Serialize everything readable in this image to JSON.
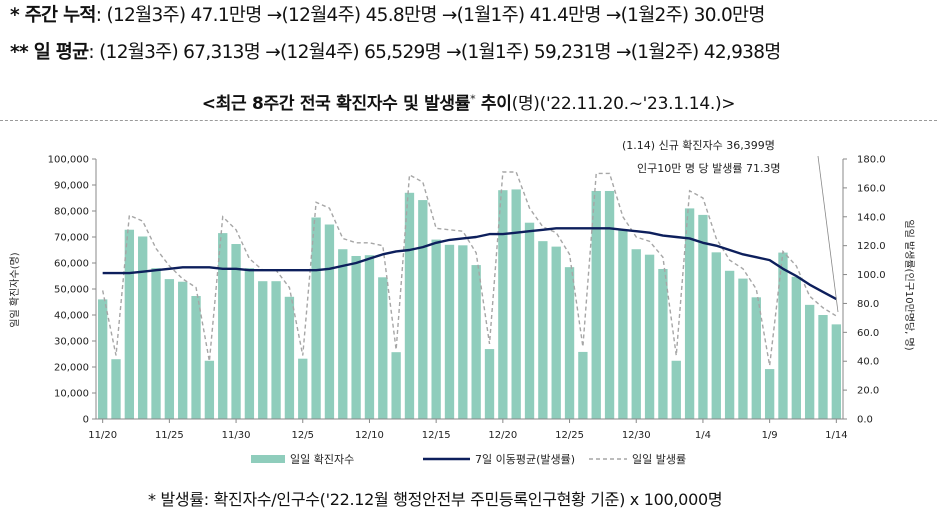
{
  "summary": {
    "weekly_label": "* 주간 누적",
    "weekly_text": ": (12월3주) 47.1만명 →(12월4주) 45.8만명 →(1월1주) 41.4만명 →(1월2주) 30.0만명",
    "daily_label": "** 일 평균",
    "daily_text": ": (12월3주) 67,313명 →(12월4주) 65,529명 →(1월1주) 59,231명 →(1월2주) 42,938명"
  },
  "header": {
    "title_main": "<최근 8주간 전국 확진자수 및 발생률",
    "title_star": "*",
    "title_end": " 추이",
    "title_unit": "(명)",
    "title_period": "('22.11.20.~'23.1.14.)>"
  },
  "footnote": "* 발생률: 확진자수/인구수('22.12월 행정안전부 주민등록인구현황 기준) x 100,000명",
  "chart_data": {
    "type": "bar",
    "title": "<최근 8주간 전국 확진자수 및 발생률* 추이(명)('22.11.20.~'23.1.14.)>",
    "ylabel": "일일 확진자수(명)",
    "y2label": "일일 발생률(인구10만명당, 명)",
    "ylim": [
      0,
      100000
    ],
    "y2lim": [
      0,
      180
    ],
    "yticks": [
      "0",
      "10,000",
      "20,000",
      "30,000",
      "40,000",
      "50,000",
      "60,000",
      "70,000",
      "80,000",
      "90,000",
      "100,000"
    ],
    "y2ticks": [
      "0.0",
      "20.0",
      "40.0",
      "60.0",
      "80.0",
      "100.0",
      "120.0",
      "140.0",
      "160.0",
      "180.0"
    ],
    "xtick_labels": [
      {
        "i": 0,
        "label": "11/20"
      },
      {
        "i": 5,
        "label": "11/25"
      },
      {
        "i": 10,
        "label": "11/30"
      },
      {
        "i": 15,
        "label": "12/5"
      },
      {
        "i": 20,
        "label": "12/10"
      },
      {
        "i": 25,
        "label": "12/15"
      },
      {
        "i": 30,
        "label": "12/20"
      },
      {
        "i": 35,
        "label": "12/25"
      },
      {
        "i": 40,
        "label": "12/30"
      },
      {
        "i": 45,
        "label": "1/4"
      },
      {
        "i": 50,
        "label": "1/9"
      },
      {
        "i": 55,
        "label": "1/14"
      }
    ],
    "grid": false,
    "legend_position": "bottom",
    "series": [
      {
        "name": "일일 확진자수",
        "type": "bar",
        "axis": "left",
        "color": "#8fcdbc",
        "values": [
          46000,
          23000,
          72800,
          70200,
          58000,
          53800,
          52800,
          47300,
          22400,
          71500,
          67300,
          58000,
          53000,
          53000,
          47000,
          23200,
          77500,
          74800,
          65300,
          62700,
          63000,
          54500,
          25700,
          87000,
          84200,
          69000,
          67000,
          66800,
          59200,
          26900,
          88000,
          88300,
          75500,
          68400,
          66300,
          58400,
          25800,
          87700,
          87700,
          72800,
          65300,
          63200,
          57700,
          22400,
          81000,
          78500,
          64100,
          57000,
          54000,
          46800,
          19200,
          64000,
          54700,
          43900,
          40000,
          36399
        ]
      },
      {
        "name": "7일 이동평균(발생률)",
        "type": "line",
        "axis": "right",
        "color": "#0d1f5c",
        "values": [
          101,
          101,
          101,
          102,
          103,
          104,
          105,
          105,
          105,
          104,
          104,
          103,
          103,
          103,
          103,
          103,
          103,
          104,
          106,
          108,
          111,
          114,
          116,
          117,
          119,
          122,
          124,
          125,
          126,
          128,
          128,
          129,
          130,
          131,
          132,
          132,
          132,
          132,
          132,
          131,
          130,
          129,
          127,
          126,
          125,
          122,
          120,
          117,
          114,
          112,
          110,
          104,
          99,
          93,
          88,
          83
        ]
      },
      {
        "name": "일일 발생률",
        "type": "line",
        "axis": "right",
        "color": "#a6a6a6",
        "dashed": true,
        "values": [
          89,
          44,
          141,
          137,
          118,
          106,
          97,
          91,
          40,
          140,
          131,
          111,
          103,
          103,
          91,
          44,
          150,
          146,
          125,
          122,
          122,
          120,
          48,
          169,
          164,
          132,
          131,
          130,
          115,
          52,
          171,
          171,
          146,
          133,
          129,
          114,
          50,
          170,
          170,
          140,
          126,
          123,
          112,
          44,
          158,
          153,
          125,
          110,
          104,
          90,
          37,
          116,
          106,
          85,
          77,
          71.3
        ]
      }
    ],
    "annotation": {
      "line1": "(1.14) 신규 확진자수 36,399명",
      "line2": "인구10만 명 당 발생률 71.3명"
    }
  }
}
